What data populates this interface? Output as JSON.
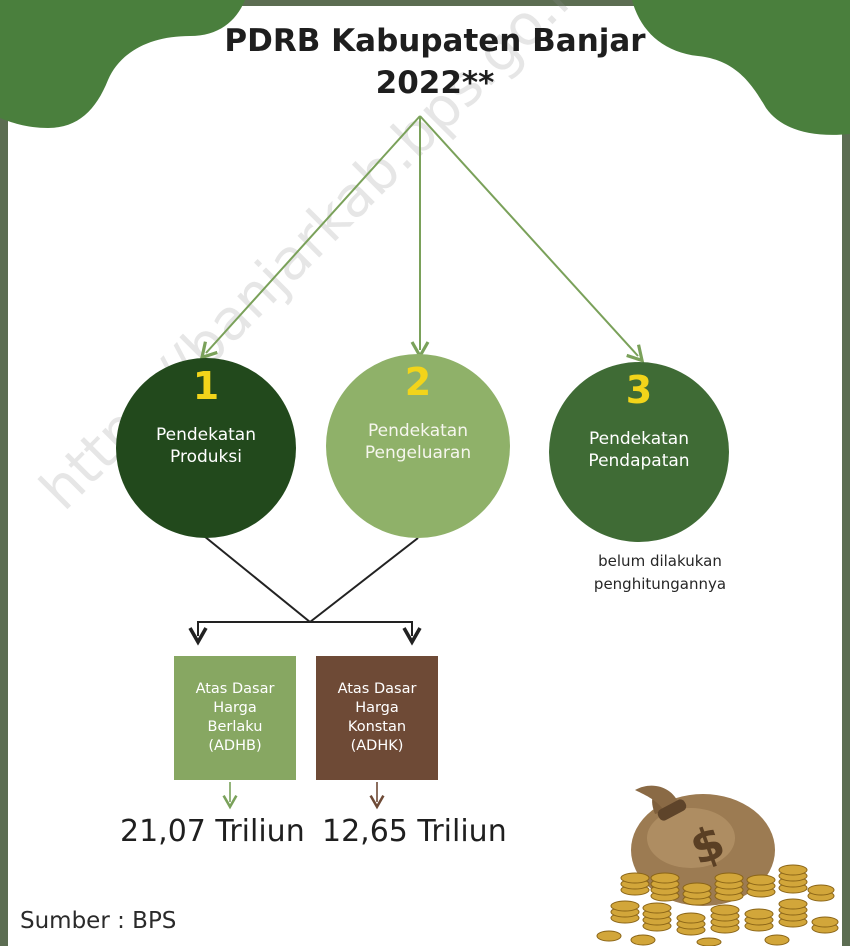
{
  "title_line1": "PDRB Kabupaten Banjar",
  "title_line2": "2022**",
  "watermark": "https://banjarkab.bps.go.id",
  "approaches": [
    {
      "number": "1",
      "line1": "Pendekatan",
      "line2": "Produksi"
    },
    {
      "number": "2",
      "line1": "Pendekatan",
      "line2": "Pengeluaran"
    },
    {
      "number": "3",
      "line1": "Pendekatan",
      "line2": "Pendapatan"
    }
  ],
  "note_line1": "belum dilakukan",
  "note_line2": "penghitungannya",
  "boxes": [
    {
      "lines": [
        "Atas Dasar",
        "Harga",
        "Berlaku",
        "(ADHB)"
      ],
      "value": "21,07 Triliun"
    },
    {
      "lines": [
        "Atas Dasar",
        "Harga",
        "Konstan",
        "(ADHK)"
      ],
      "value": "12,65 Triliun"
    }
  ],
  "source": "Sumber : BPS",
  "colors": {
    "dark_green": "#22491c",
    "light_green": "#8fb169",
    "mid_green": "#3f6b35",
    "brown": "#6e4a36",
    "number_yellow": "#f2d41a",
    "arrow_green": "#7aa15a"
  },
  "icons": [
    "money-bag-icon",
    "coin-stack-icon"
  ]
}
